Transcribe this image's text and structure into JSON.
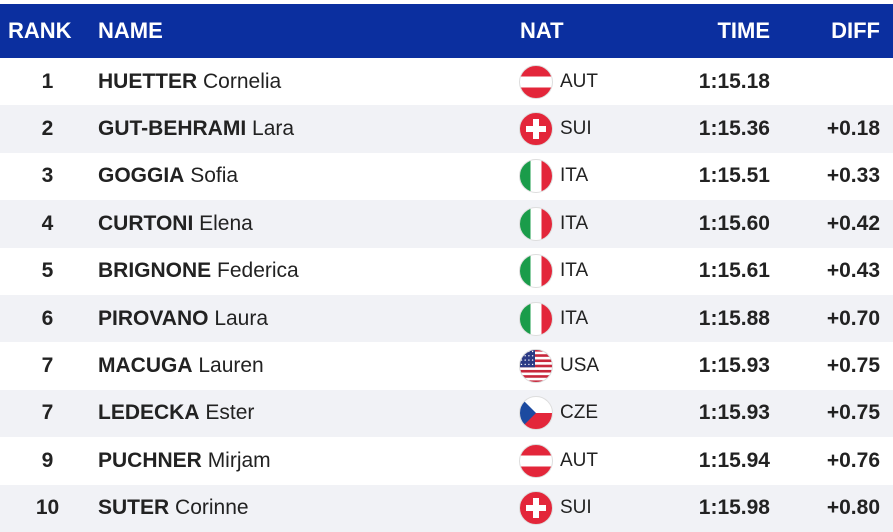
{
  "header": {
    "rank": "RANK",
    "name": "NAME",
    "nat": "NAT",
    "time": "TIME",
    "diff": "DIFF"
  },
  "rows": [
    {
      "rank": 1,
      "surname": "HUETTER",
      "given": "Cornelia",
      "nat": "AUT",
      "time": "1:15.18"
    },
    {
      "rank": 2,
      "surname": "GUT-BEHRAMI",
      "given": "Lara",
      "nat": "SUI",
      "time": "1:15.36",
      "diff": "+0.18"
    },
    {
      "rank": 3,
      "surname": "GOGGIA",
      "given": "Sofia",
      "nat": "ITA",
      "time": "1:15.51",
      "diff": "+0.33"
    },
    {
      "rank": 4,
      "surname": "CURTONI",
      "given": "Elena",
      "nat": "ITA",
      "time": "1:15.60",
      "diff": "+0.42"
    },
    {
      "rank": 5,
      "surname": "BRIGNONE",
      "given": "Federica",
      "nat": "ITA",
      "time": "1:15.61",
      "diff": "+0.43"
    },
    {
      "rank": 6,
      "surname": "PIROVANO",
      "given": "Laura",
      "nat": "ITA",
      "time": "1:15.88",
      "diff": "+0.70"
    },
    {
      "rank": 7,
      "surname": "MACUGA",
      "given": "Lauren",
      "nat": "USA",
      "time": "1:15.93",
      "diff": "+0.75"
    },
    {
      "rank": 7,
      "surname": "LEDECKA",
      "given": "Ester",
      "nat": "CZE",
      "time": "1:15.93",
      "diff": "+0.75"
    },
    {
      "rank": 9,
      "surname": "PUCHNER",
      "given": "Mirjam",
      "nat": "AUT",
      "time": "1:15.94",
      "diff": "+0.76"
    },
    {
      "rank": 10,
      "surname": "SUTER",
      "given": "Corinne",
      "nat": "SUI",
      "time": "1:15.98",
      "diff": "+0.80"
    }
  ]
}
